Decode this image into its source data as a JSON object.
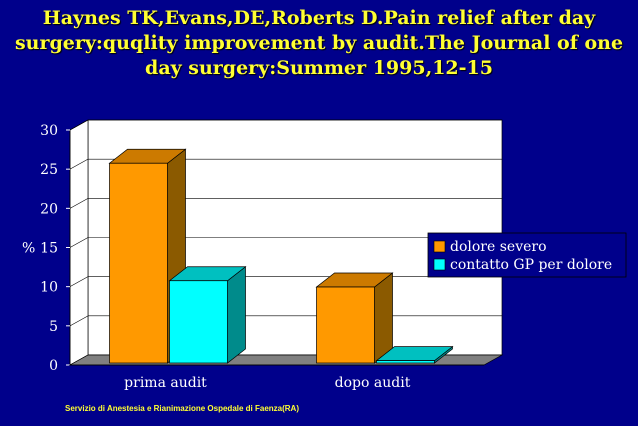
{
  "title_lines": [
    "Haynes TK,Evans,DE,Roberts D.Pain relief after day",
    "surgery:quqlity improvement by audit.The Journal of one",
    "day surgery:Summer 1995,12-15"
  ],
  "footer": "Servizio di Anestesia e Rianimazione Ospedale di Faenza(RA)",
  "colors": {
    "background": "#00008b",
    "title": "#ffff33",
    "plot_area": "#ffffff",
    "floor": "#808080",
    "series_front": [
      "#ff9900",
      "#00ffff"
    ],
    "series_side": [
      "#8b5a00",
      "#008b8b"
    ],
    "series_top": [
      "#cc7a00",
      "#00c0c0"
    ]
  },
  "chart_data": {
    "type": "bar",
    "title": "",
    "xlabel": "",
    "ylabel": "%",
    "ylim": [
      0,
      30
    ],
    "yticks": [
      0,
      5,
      10,
      15,
      20,
      25,
      30
    ],
    "categories": [
      "prima audit",
      "dopo audit"
    ],
    "series": [
      {
        "name": "dolore severo",
        "values": [
          25.5,
          9.7
        ]
      },
      {
        "name": "contatto GP per dolore",
        "values": [
          10.5,
          0.3
        ]
      }
    ],
    "grid": true,
    "style": "3d",
    "legend_position": "right"
  }
}
